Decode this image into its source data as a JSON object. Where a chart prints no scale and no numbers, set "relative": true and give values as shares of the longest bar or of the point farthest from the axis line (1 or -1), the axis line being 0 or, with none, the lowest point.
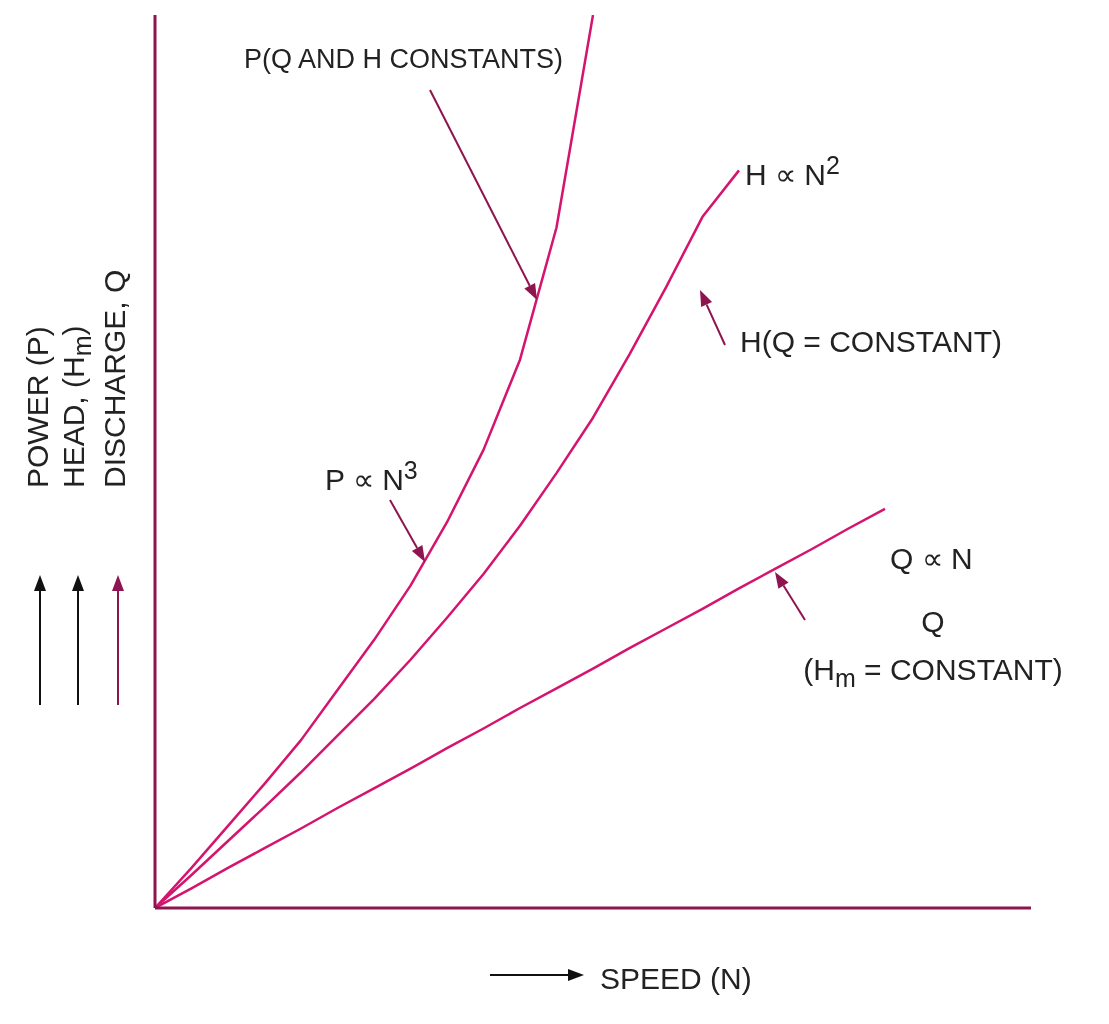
{
  "chart_data": {
    "type": "line",
    "relative": true,
    "xlabel": "SPEED (N)",
    "ylabel": "POWER (P)\nHEAD, (H$_{m}$)\nDISCHARGE, Q",
    "categories": [
      null,
      null,
      null,
      null,
      null,
      null,
      null,
      null,
      null,
      null,
      null,
      null,
      null,
      null,
      null,
      null,
      null,
      null,
      null,
      null,
      null
    ],
    "series": [
      {
        "color": "#d4146e",
        "values": [
          0,
          0.045,
          0.092,
          0.139,
          0.188,
          0.244,
          0.3,
          0.361,
          0.432,
          0.513,
          0.614,
          0.762,
          1,
          null,
          null,
          null,
          null,
          null,
          null,
          null,
          null
        ]
      },
      {
        "color": "#d4146e",
        "values": [
          0,
          0.037,
          0.075,
          0.113,
          0.152,
          0.193,
          0.234,
          0.278,
          0.325,
          0.374,
          0.428,
          0.487,
          0.549,
          0.62,
          0.695,
          0.774,
          0.826,
          null,
          null,
          null,
          null
        ]
      },
      {
        "color": "#d4146e",
        "values": [
          0,
          0.022,
          0.045,
          0.067,
          0.089,
          0.112,
          0.134,
          0.156,
          0.179,
          0.201,
          0.224,
          0.246,
          0.268,
          0.291,
          0.313,
          0.335,
          0.358,
          0.38,
          0.402,
          0.425,
          0.447
        ]
      }
    ],
    "annotations": [
      "P(Q AND H CONSTANTS)",
      "H ∝ N$^{2}$",
      "H(Q = CONSTANT)",
      "P ∝ N$^{3}$",
      "Q ∝ N",
      "Q\n(H$_{m}$ = CONSTANT)"
    ]
  }
}
